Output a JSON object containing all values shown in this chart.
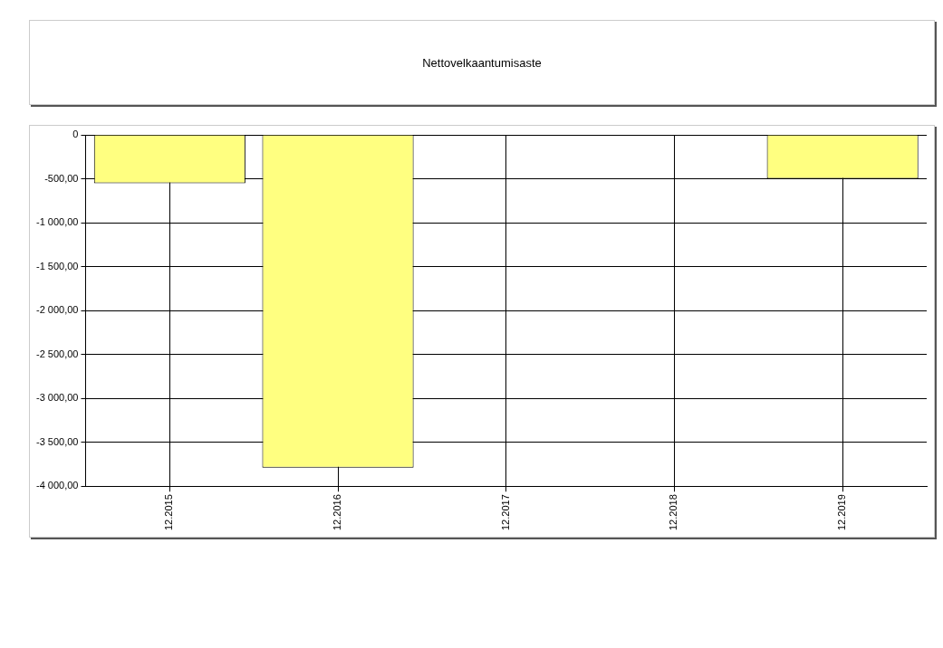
{
  "chart_data": {
    "type": "bar",
    "title": "Nettovelkaantumisaste",
    "categories": [
      "12.2015",
      "12.2016",
      "12.2017",
      "12.2018",
      "12.2019"
    ],
    "series": [
      {
        "color": "#ffff80",
        "values": [
          -550,
          -3790,
          null,
          null,
          -500
        ]
      }
    ],
    "ylim": [
      -4000,
      0
    ],
    "yticks": [
      {
        "value": -4000,
        "label": "-4 000,00"
      },
      {
        "value": -3500,
        "label": "-3 500,00"
      },
      {
        "value": -3000,
        "label": "-3 000,00"
      },
      {
        "value": -2500,
        "label": "-2 500,00"
      },
      {
        "value": -2000,
        "label": "-2 000,00"
      },
      {
        "value": -1500,
        "label": "-1 500,00"
      },
      {
        "value": -1000,
        "label": "-1 000,00"
      },
      {
        "value": -500,
        "label": "-500,00"
      },
      0
    ],
    "grid": true
  }
}
